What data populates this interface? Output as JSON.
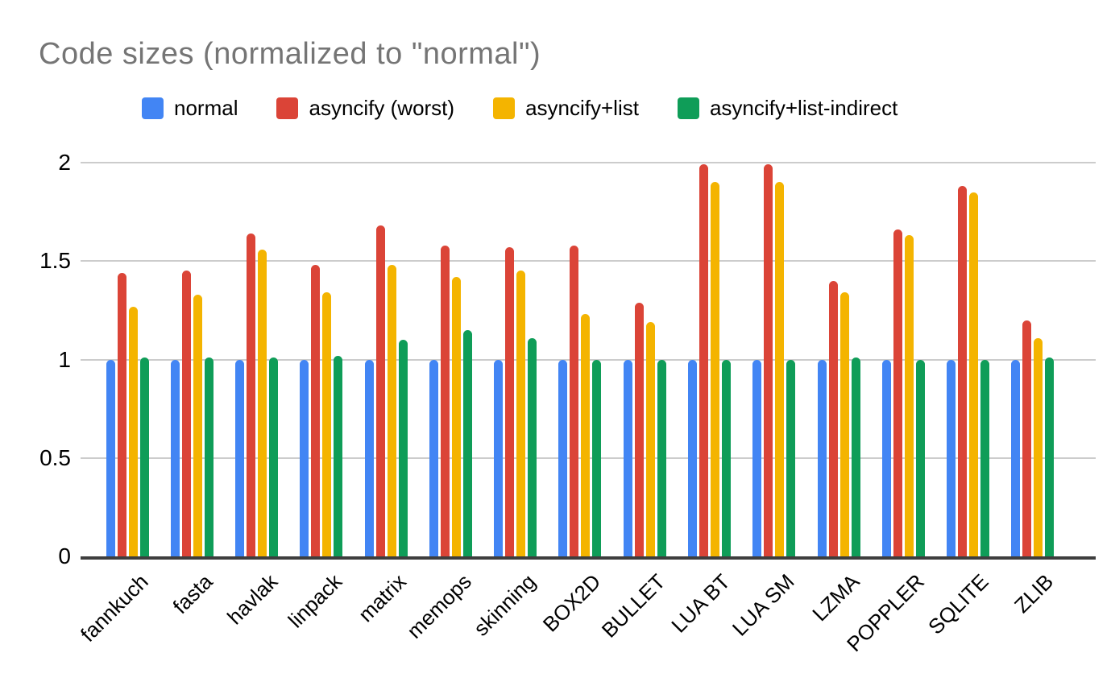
{
  "chart_data": {
    "type": "bar",
    "title": "Code sizes (normalized to \"normal\")",
    "xlabel": "",
    "ylabel": "",
    "ylim": [
      0,
      2
    ],
    "grid": true,
    "legend_position": "top",
    "categories": [
      "fannkuch",
      "fasta",
      "havlak",
      "linpack",
      "matrix",
      "memops",
      "skinning",
      "BOX2D",
      "BULLET",
      "LUA BT",
      "LUA SM",
      "LZMA",
      "POPPLER",
      "SQLITE",
      "ZLIB"
    ],
    "series": [
      {
        "name": "normal",
        "color": "#4285F4",
        "values": [
          1.0,
          1.0,
          1.0,
          1.0,
          1.0,
          1.0,
          1.0,
          1.0,
          1.0,
          1.0,
          1.0,
          1.0,
          1.0,
          1.0,
          1.0
        ]
      },
      {
        "name": "asyncify (worst)",
        "color": "#DB4437",
        "values": [
          1.44,
          1.45,
          1.64,
          1.48,
          1.68,
          1.58,
          1.57,
          1.58,
          1.29,
          1.99,
          1.99,
          1.4,
          1.66,
          1.88,
          1.2
        ]
      },
      {
        "name": "asyncify+list",
        "color": "#F4B400",
        "values": [
          1.27,
          1.33,
          1.56,
          1.34,
          1.48,
          1.42,
          1.45,
          1.23,
          1.19,
          1.9,
          1.9,
          1.34,
          1.63,
          1.85,
          1.11
        ]
      },
      {
        "name": "asyncify+list-indirect",
        "color": "#0F9D58",
        "values": [
          1.01,
          1.01,
          1.01,
          1.02,
          1.1,
          1.15,
          1.11,
          1.0,
          1.0,
          1.0,
          1.0,
          1.01,
          1.0,
          1.0,
          1.01
        ]
      }
    ],
    "yticks": [
      {
        "value": 0,
        "label": "0"
      },
      {
        "value": 0.5,
        "label": "0.5"
      },
      {
        "value": 1,
        "label": "1"
      },
      {
        "value": 1.5,
        "label": "1.5"
      },
      {
        "value": 2,
        "label": "2"
      }
    ],
    "colors": {
      "background": "#FFFFFF",
      "title_text": "#757575",
      "axis_line": "#3E3E3E",
      "gridline": "#CCCCCC",
      "tick_text": "#000000"
    }
  }
}
